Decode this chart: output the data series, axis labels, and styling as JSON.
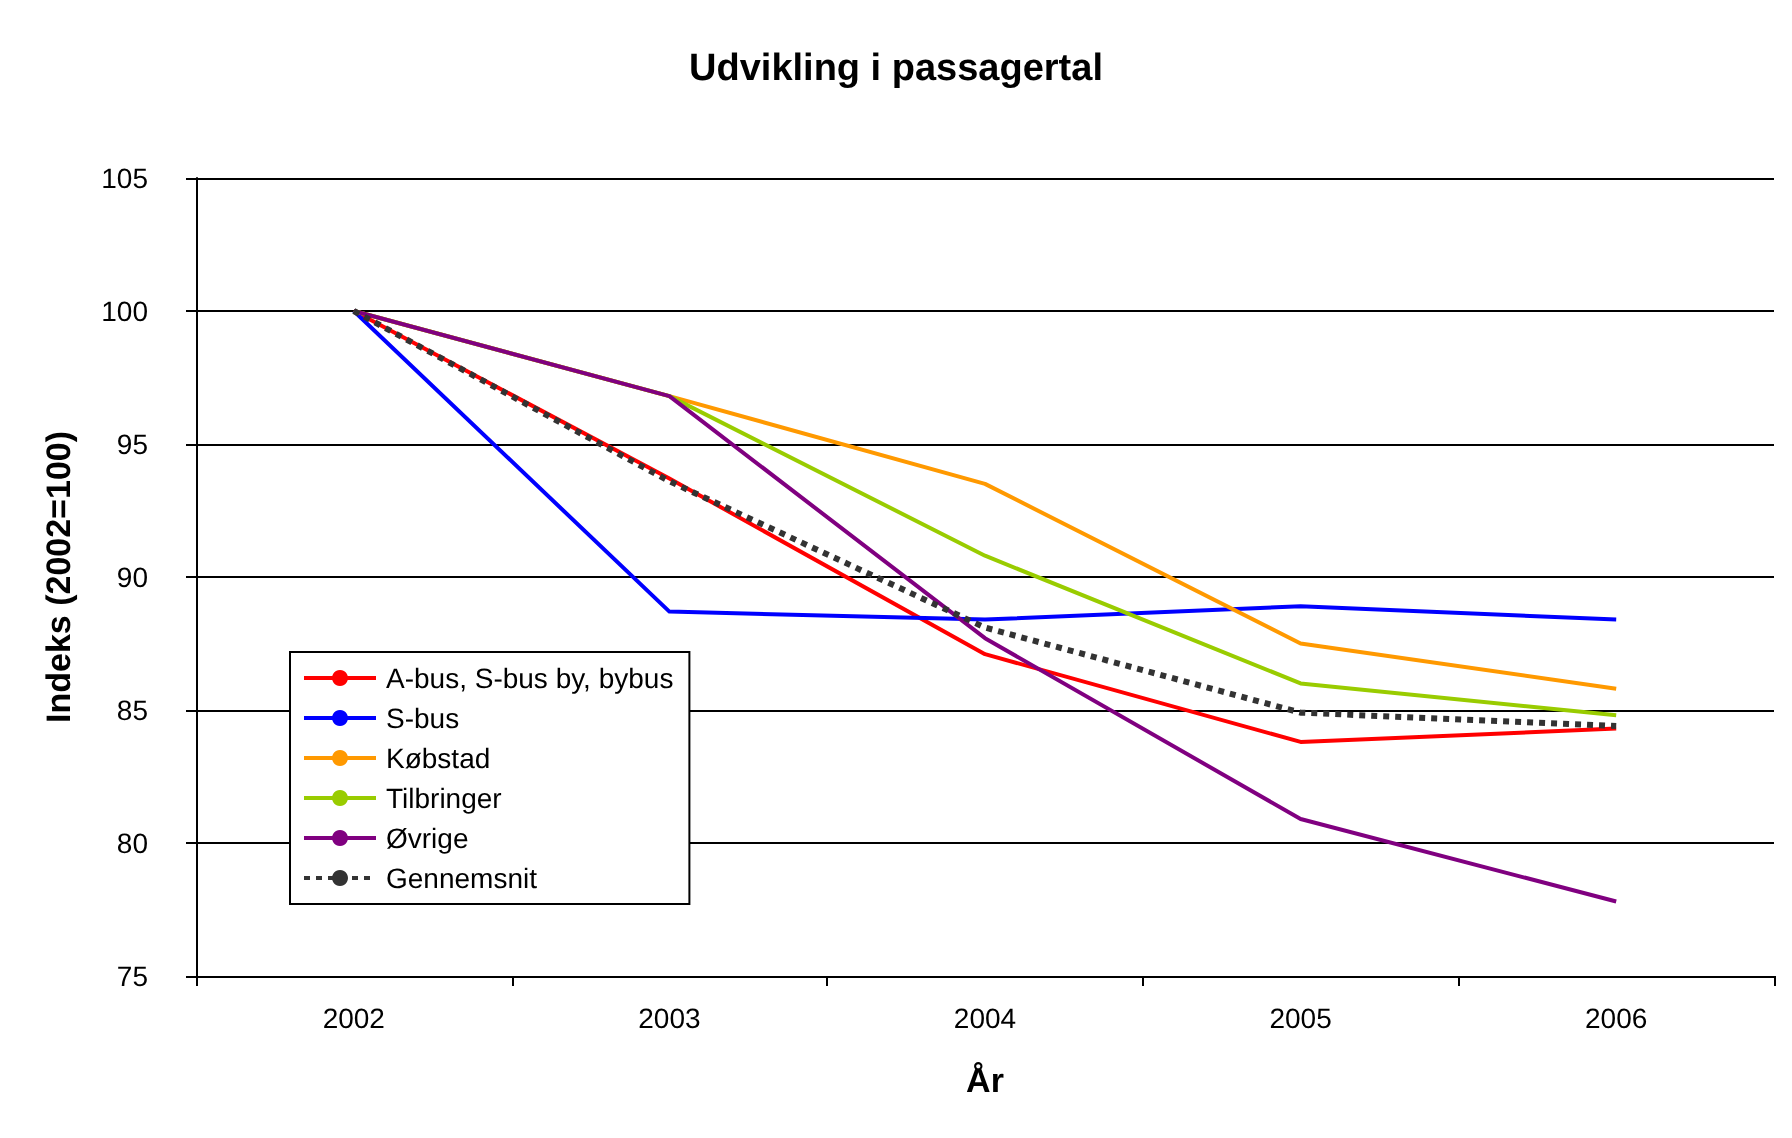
{
  "chart_data": {
    "type": "line",
    "title": "Udvikling i passagertal",
    "xlabel": "År",
    "ylabel": "Indeks (2002=100)",
    "categories": [
      "2002",
      "2003",
      "2004",
      "2005",
      "2006"
    ],
    "series": [
      {
        "name": "A-bus, S-bus by, bybus",
        "color": "#ff0000",
        "values": [
          100,
          93.7,
          87.1,
          83.8,
          84.3
        ]
      },
      {
        "name": "S-bus",
        "color": "#0000ff",
        "values": [
          100,
          88.7,
          88.4,
          88.9,
          88.4
        ]
      },
      {
        "name": "Købstad",
        "color": "#ff9900",
        "values": [
          100,
          96.8,
          93.5,
          87.5,
          85.8
        ]
      },
      {
        "name": "Tilbringer",
        "color": "#99cc00",
        "values": [
          100,
          96.8,
          90.8,
          86.0,
          84.8
        ]
      },
      {
        "name": "Øvrige",
        "color": "#800080",
        "values": [
          100,
          96.8,
          87.7,
          80.9,
          77.8
        ]
      },
      {
        "name": "Gennemsnit",
        "color": "#333333",
        "line_style": "dotted",
        "values": [
          100,
          93.6,
          88.1,
          84.9,
          84.4
        ]
      }
    ],
    "ylim": [
      75,
      105
    ],
    "yticks": [
      75,
      80,
      85,
      90,
      95,
      100,
      105
    ],
    "grid": "y",
    "legend": "bottom left",
    "marker": "none",
    "line_style": "solid"
  }
}
